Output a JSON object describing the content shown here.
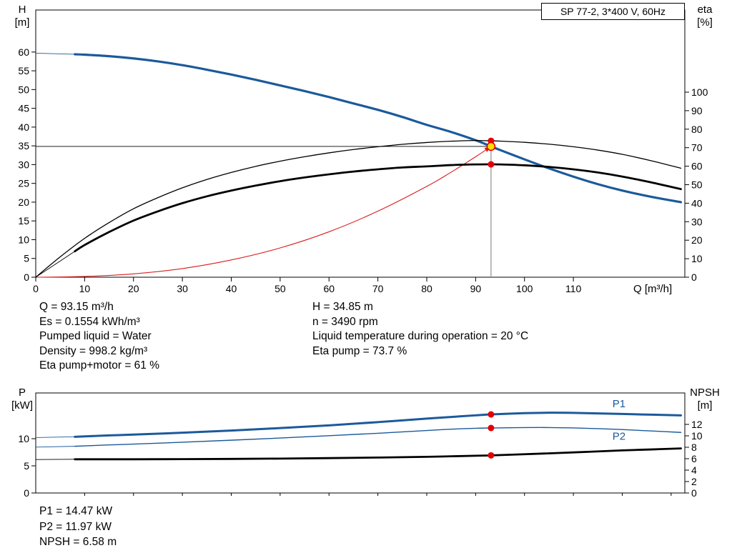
{
  "title_box": "SP 77-2, 3*400 V, 60Hz",
  "info_top_left": [
    "Q = 93.15 m³/h",
    "Es = 0.1554 kWh/m³",
    "Pumped liquid = Water",
    "Density = 998.2 kg/m³",
    "Eta pump+motor = 61 %"
  ],
  "info_top_right": [
    "H = 34.85 m",
    "n = 3490 rpm",
    "Liquid temperature during operation = 20 °C",
    "Eta pump = 73.7 %"
  ],
  "info_bottom": [
    "P1 = 14.47 kW",
    "P2 = 11.97 kW",
    "NPSH = 6.58 m"
  ],
  "colors": {
    "curve_blue": "#1b5a9b",
    "curve_black": "#000000",
    "curve_red": "#d81e1e",
    "marker_red": "#e60000",
    "marker_yellow": "#ffe000",
    "crosshair_grey": "#8f8f8f"
  },
  "chart_data": [
    {
      "id": "top",
      "type": "line",
      "title": "SP 77-2, 3*400 V, 60Hz",
      "x_axis": {
        "label": "Q [m³/h]",
        "min": 0,
        "max": 132.8,
        "ticks": [
          0,
          10,
          20,
          30,
          40,
          50,
          60,
          70,
          80,
          90,
          100,
          110
        ],
        "show_labels": true
      },
      "y_left": {
        "label_lines": [
          "H",
          "[m]"
        ],
        "min": 0,
        "max": 71.2,
        "ticks": [
          0,
          5,
          10,
          15,
          20,
          25,
          30,
          35,
          40,
          45,
          50,
          55,
          60
        ]
      },
      "y_right": {
        "label_lines": [
          "eta",
          "[%]"
        ],
        "min": 0,
        "max": 144.4,
        "ticks": [
          0,
          10,
          20,
          30,
          40,
          50,
          60,
          70,
          80,
          90,
          100
        ]
      },
      "duty_point": {
        "q": 93.15,
        "h": 34.85,
        "eta_pump": 73.7,
        "eta_pump_motor": 61.0
      },
      "crosshair": {
        "q": 93.15,
        "h": 34.85,
        "v_top": 73.7
      },
      "series": [
        {
          "key": "system-curve",
          "name": "System curve",
          "axis": "left",
          "color": "curve_red",
          "width": 1.1,
          "arrow": true,
          "points": [
            [
              0,
              0
            ],
            [
              10,
              0.2
            ],
            [
              20,
              0.9
            ],
            [
              30,
              2.3
            ],
            [
              40,
              4.6
            ],
            [
              50,
              7.8
            ],
            [
              60,
              12.1
            ],
            [
              70,
              17.6
            ],
            [
              80,
              24.2
            ],
            [
              85,
              28.0
            ],
            [
              90,
              32.1
            ],
            [
              93.15,
              34.85
            ]
          ]
        },
        {
          "key": "h-curve",
          "name": "H pump curve",
          "axis": "left",
          "color": "curve_blue",
          "width": 3.2,
          "lead": [
            [
              0,
              59.7
            ],
            [
              8,
              59.4
            ]
          ],
          "points": [
            [
              8,
              59.4
            ],
            [
              10,
              59.3
            ],
            [
              15,
              58.9
            ],
            [
              20,
              58.3
            ],
            [
              25,
              57.5
            ],
            [
              30,
              56.5
            ],
            [
              35,
              55.3
            ],
            [
              40,
              54.0
            ],
            [
              45,
              52.6
            ],
            [
              50,
              51.1
            ],
            [
              55,
              49.6
            ],
            [
              60,
              48.0
            ],
            [
              65,
              46.3
            ],
            [
              70,
              44.6
            ],
            [
              75,
              42.7
            ],
            [
              80,
              40.6
            ],
            [
              85,
              38.7
            ],
            [
              90,
              36.5
            ],
            [
              93.15,
              34.85
            ],
            [
              95,
              33.9
            ],
            [
              100,
              31.4
            ],
            [
              105,
              29.0
            ],
            [
              110,
              26.8
            ],
            [
              115,
              24.8
            ],
            [
              120,
              23.1
            ],
            [
              126,
              21.4
            ],
            [
              132,
              20.0
            ]
          ]
        },
        {
          "key": "eta-pump-curve",
          "name": "Eta pump",
          "axis": "right",
          "color": "curve_black",
          "width": 1.3,
          "points": [
            [
              0,
              0
            ],
            [
              5,
              11
            ],
            [
              10,
              21
            ],
            [
              15,
              29.5
            ],
            [
              20,
              37
            ],
            [
              25,
              43
            ],
            [
              30,
              48.3
            ],
            [
              35,
              52.8
            ],
            [
              40,
              56.6
            ],
            [
              45,
              59.9
            ],
            [
              50,
              62.7
            ],
            [
              55,
              65.1
            ],
            [
              60,
              67.2
            ],
            [
              65,
              69.0
            ],
            [
              70,
              70.5
            ],
            [
              75,
              71.8
            ],
            [
              80,
              72.8
            ],
            [
              85,
              73.5
            ],
            [
              90,
              73.9
            ],
            [
              93.15,
              73.7
            ],
            [
              95,
              73.55
            ],
            [
              100,
              72.9
            ],
            [
              105,
              71.9
            ],
            [
              110,
              70.5
            ],
            [
              115,
              68.7
            ],
            [
              120,
              66.4
            ],
            [
              126,
              62.9
            ],
            [
              132,
              58.9
            ]
          ]
        },
        {
          "key": "eta-pump-motor-curve",
          "name": "Eta pump+motor",
          "axis": "right",
          "color": "curve_black",
          "width": 2.8,
          "lead": [
            [
              0,
              0
            ],
            [
              8,
              14
            ]
          ],
          "points": [
            [
              8,
              14
            ],
            [
              10,
              17.4
            ],
            [
              15,
              24.4
            ],
            [
              20,
              30.6
            ],
            [
              25,
              35.6
            ],
            [
              30,
              40.0
            ],
            [
              35,
              43.7
            ],
            [
              40,
              46.8
            ],
            [
              45,
              49.5
            ],
            [
              50,
              51.9
            ],
            [
              55,
              53.9
            ],
            [
              60,
              55.6
            ],
            [
              65,
              57.1
            ],
            [
              70,
              58.3
            ],
            [
              75,
              59.3
            ],
            [
              80,
              59.9
            ],
            [
              85,
              60.6
            ],
            [
              90,
              60.95
            ],
            [
              93.15,
              61.0
            ],
            [
              95,
              60.95
            ],
            [
              100,
              60.5
            ],
            [
              105,
              59.6
            ],
            [
              110,
              58.3
            ],
            [
              115,
              56.6
            ],
            [
              120,
              54.4
            ],
            [
              126,
              51.2
            ],
            [
              132,
              47.6
            ]
          ]
        }
      ],
      "markers": [
        {
          "q": 93.15,
          "v": 73.7,
          "axis": "right",
          "style": "dot"
        },
        {
          "q": 93.15,
          "v": 61.0,
          "axis": "right",
          "style": "dot"
        },
        {
          "q": 93.15,
          "v": 34.85,
          "axis": "left",
          "style": "ring"
        }
      ],
      "labels": []
    },
    {
      "id": "bottom",
      "type": "line",
      "x_axis": {
        "label": "",
        "min": 0,
        "max": 132.8,
        "ticks": [
          10,
          20,
          30,
          40,
          50,
          60,
          70,
          80,
          90,
          100,
          110,
          120,
          130
        ],
        "show_labels": false
      },
      "y_left": {
        "label_lines": [
          "P",
          "[kW]"
        ],
        "min": 0,
        "max": 18.42,
        "ticks": [
          0,
          5,
          10
        ]
      },
      "y_right": {
        "label_lines": [
          "NPSH",
          "[m]"
        ],
        "min": 0,
        "max": 17.5,
        "ticks": [
          0,
          2,
          4,
          6,
          8,
          10,
          12
        ]
      },
      "duty_point": {
        "q": 93.15,
        "p1": 14.47,
        "p2": 11.97,
        "npsh": 6.58
      },
      "series": [
        {
          "key": "p1-curve",
          "name": "P1",
          "axis": "left",
          "color": "curve_blue",
          "width": 3.0,
          "lead": [
            [
              0,
              10.2
            ],
            [
              8,
              10.35
            ]
          ],
          "points": [
            [
              8,
              10.35
            ],
            [
              15,
              10.6
            ],
            [
              20,
              10.75
            ],
            [
              30,
              11.1
            ],
            [
              40,
              11.5
            ],
            [
              50,
              11.95
            ],
            [
              60,
              12.45
            ],
            [
              70,
              13.05
            ],
            [
              80,
              13.7
            ],
            [
              85,
              14.0
            ],
            [
              90,
              14.3
            ],
            [
              93.15,
              14.47
            ],
            [
              100,
              14.7
            ],
            [
              105,
              14.78
            ],
            [
              110,
              14.75
            ],
            [
              115,
              14.65
            ],
            [
              120,
              14.55
            ],
            [
              126,
              14.42
            ],
            [
              132,
              14.3
            ]
          ]
        },
        {
          "key": "p2-curve",
          "name": "P2",
          "axis": "left",
          "color": "curve_blue",
          "width": 1.4,
          "lead": [
            [
              0,
              8.45
            ],
            [
              8,
              8.6
            ]
          ],
          "points": [
            [
              8,
              8.6
            ],
            [
              15,
              8.85
            ],
            [
              20,
              9.0
            ],
            [
              30,
              9.35
            ],
            [
              40,
              9.72
            ],
            [
              50,
              10.12
            ],
            [
              60,
              10.55
            ],
            [
              70,
              11.0
            ],
            [
              80,
              11.5
            ],
            [
              85,
              11.75
            ],
            [
              90,
              11.92
            ],
            [
              93.15,
              11.97
            ],
            [
              100,
              12.05
            ],
            [
              105,
              12.05
            ],
            [
              110,
              11.98
            ],
            [
              115,
              11.85
            ],
            [
              120,
              11.68
            ],
            [
              126,
              11.42
            ],
            [
              132,
              11.15
            ]
          ]
        },
        {
          "key": "npsh-curve",
          "name": "NPSH",
          "axis": "right",
          "color": "curve_black",
          "width": 2.8,
          "lead": [
            [
              0,
              5.85
            ],
            [
              8,
              5.9
            ]
          ],
          "points": [
            [
              8,
              5.9
            ],
            [
              20,
              5.9
            ],
            [
              30,
              5.92
            ],
            [
              40,
              5.96
            ],
            [
              50,
              6.02
            ],
            [
              60,
              6.1
            ],
            [
              70,
              6.2
            ],
            [
              80,
              6.33
            ],
            [
              90,
              6.52
            ],
            [
              93.15,
              6.58
            ],
            [
              100,
              6.78
            ],
            [
              110,
              7.1
            ],
            [
              120,
              7.45
            ],
            [
              126,
              7.62
            ],
            [
              132,
              7.8
            ]
          ]
        }
      ],
      "markers": [
        {
          "q": 93.15,
          "v": 14.47,
          "axis": "left",
          "style": "dot"
        },
        {
          "q": 93.15,
          "v": 11.97,
          "axis": "left",
          "style": "dot"
        },
        {
          "q": 93.15,
          "v": 6.58,
          "axis": "right",
          "style": "dot"
        }
      ],
      "labels": [
        {
          "text": "P1",
          "q": 118,
          "v": 15.8,
          "axis": "left"
        },
        {
          "text": "P2",
          "q": 118,
          "v": 9.8,
          "axis": "left"
        }
      ]
    }
  ]
}
